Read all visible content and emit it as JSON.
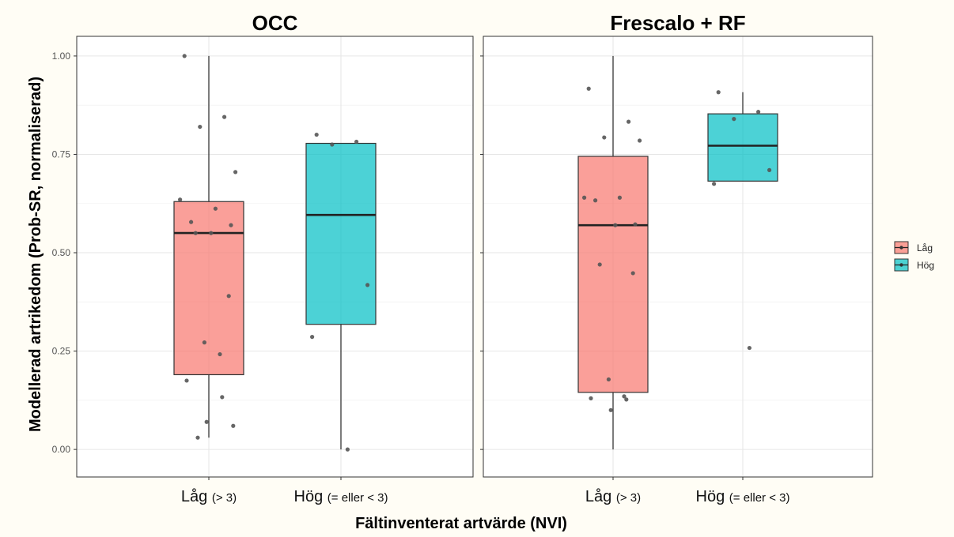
{
  "chart_data": {
    "type": "box",
    "ylabel": "Modellerad artrikedom (Prob-SR, normaliserad)",
    "xlabel": "Fältinventerat  artvärde (NVI)",
    "ylim": [
      -0.07,
      1.05
    ],
    "y_ticks": [
      "0.00",
      "0.25",
      "0.50",
      "0.75",
      "1.00"
    ],
    "grid": true,
    "legend_position": "right",
    "legend": [
      {
        "name": "Låg",
        "color": "#f8766d"
      },
      {
        "name": "Hög",
        "color": "#00bfc4"
      }
    ],
    "categories": [
      {
        "main": "Låg",
        "sub": "(> 3)"
      },
      {
        "main": "Hög",
        "sub": "(= eller < 3)"
      }
    ],
    "panels": [
      {
        "title": "OCC",
        "boxes": [
          {
            "group": "Låg",
            "min": 0.03,
            "q1": 0.19,
            "median": 0.55,
            "q3": 0.63,
            "max": 1.0,
            "points": [
              1.0,
              0.845,
              0.82,
              0.705,
              0.635,
              0.612,
              0.578,
              0.57,
              0.55,
              0.55,
              0.39,
              0.272,
              0.242,
              0.175,
              0.133,
              0.07,
              0.06,
              0.03
            ]
          },
          {
            "group": "Hög",
            "min": 0.0,
            "q1": 0.318,
            "median": 0.596,
            "q3": 0.778,
            "max": 0.778,
            "points": [
              0.8,
              0.782,
              0.775,
              0.418,
              0.286,
              0.0
            ]
          }
        ]
      },
      {
        "title": "Frescalo + RF",
        "boxes": [
          {
            "group": "Låg",
            "min": 0.0,
            "q1": 0.145,
            "median": 0.57,
            "q3": 0.745,
            "max": 1.0,
            "points": [
              0.917,
              0.833,
              0.793,
              0.785,
              0.64,
              0.64,
              0.633,
              0.572,
              0.57,
              0.47,
              0.448,
              0.178,
              0.135,
              0.13,
              0.127,
              0.1
            ]
          },
          {
            "group": "Hög",
            "min": 0.682,
            "q1": 0.682,
            "median": 0.772,
            "q3": 0.853,
            "max": 0.908,
            "points": [
              0.908,
              0.858,
              0.84,
              0.71,
              0.675,
              0.258
            ]
          }
        ]
      }
    ]
  }
}
